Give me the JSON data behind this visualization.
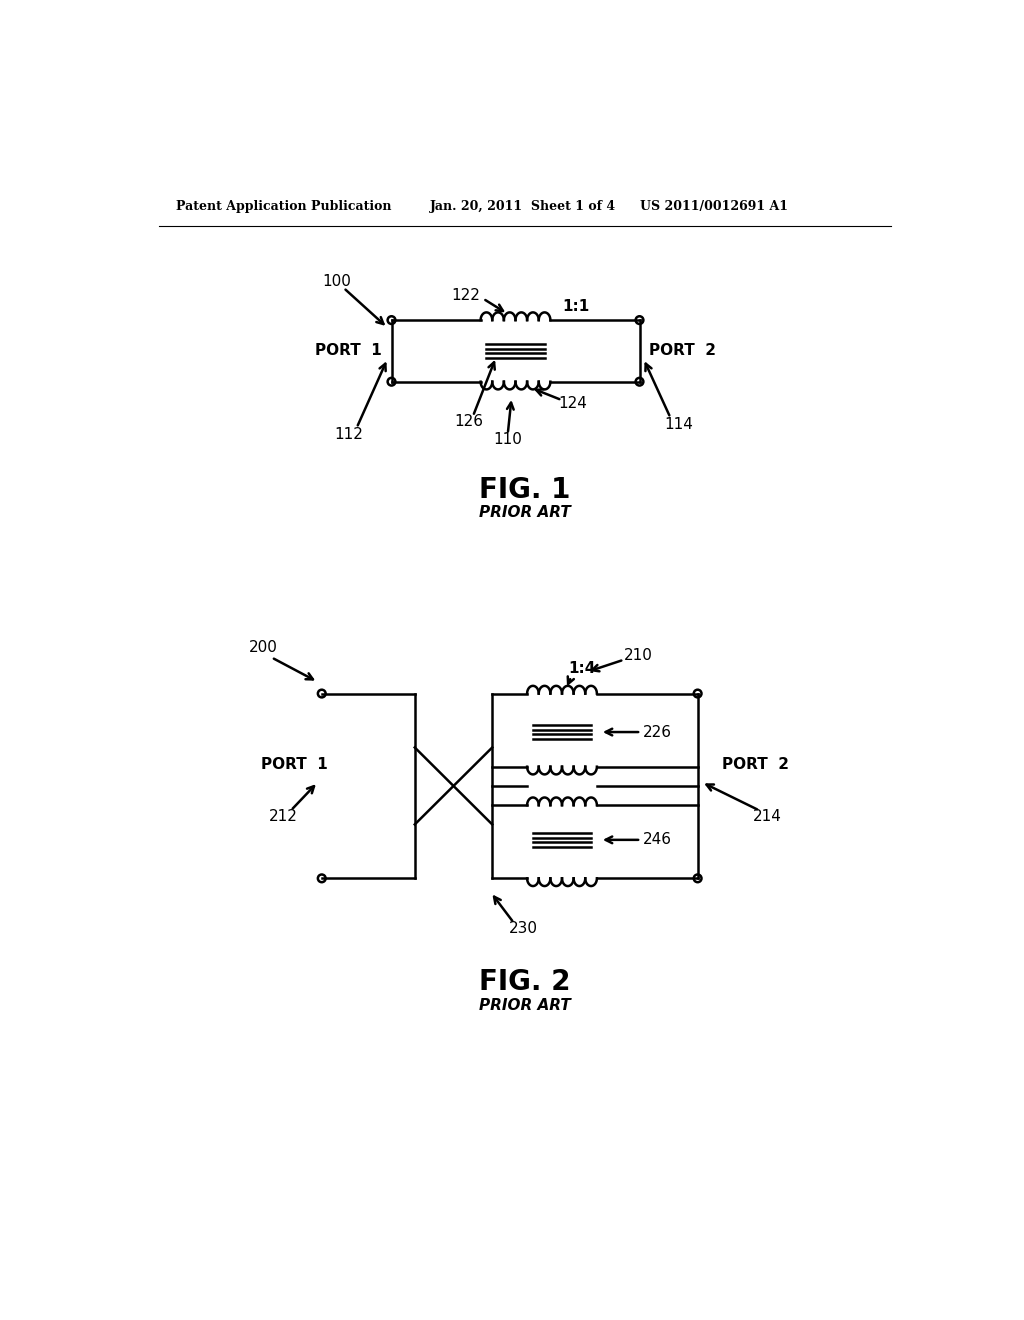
{
  "bg_color": "#ffffff",
  "header_left": "Patent Application Publication",
  "header_mid": "Jan. 20, 2011  Sheet 1 of 4",
  "header_right": "US 2011/0012691 A1",
  "fig1_label": "FIG. 1",
  "fig1_sub": "PRIOR ART",
  "fig2_label": "FIG. 2",
  "fig2_sub": "PRIOR ART",
  "label_100": "100",
  "label_110": "110",
  "label_112": "112",
  "label_114": "114",
  "label_122": "122",
  "label_124": "124",
  "label_126": "126",
  "label_11": "1:1",
  "label_port1_fig1": "PORT  1",
  "label_port2_fig1": "PORT  2",
  "label_200": "200",
  "label_210": "210",
  "label_212": "212",
  "label_214": "214",
  "label_226": "226",
  "label_246": "246",
  "label_230": "230",
  "label_14": "1:4",
  "label_port1_fig2": "PORT  1",
  "label_port2_fig2": "PORT  2"
}
